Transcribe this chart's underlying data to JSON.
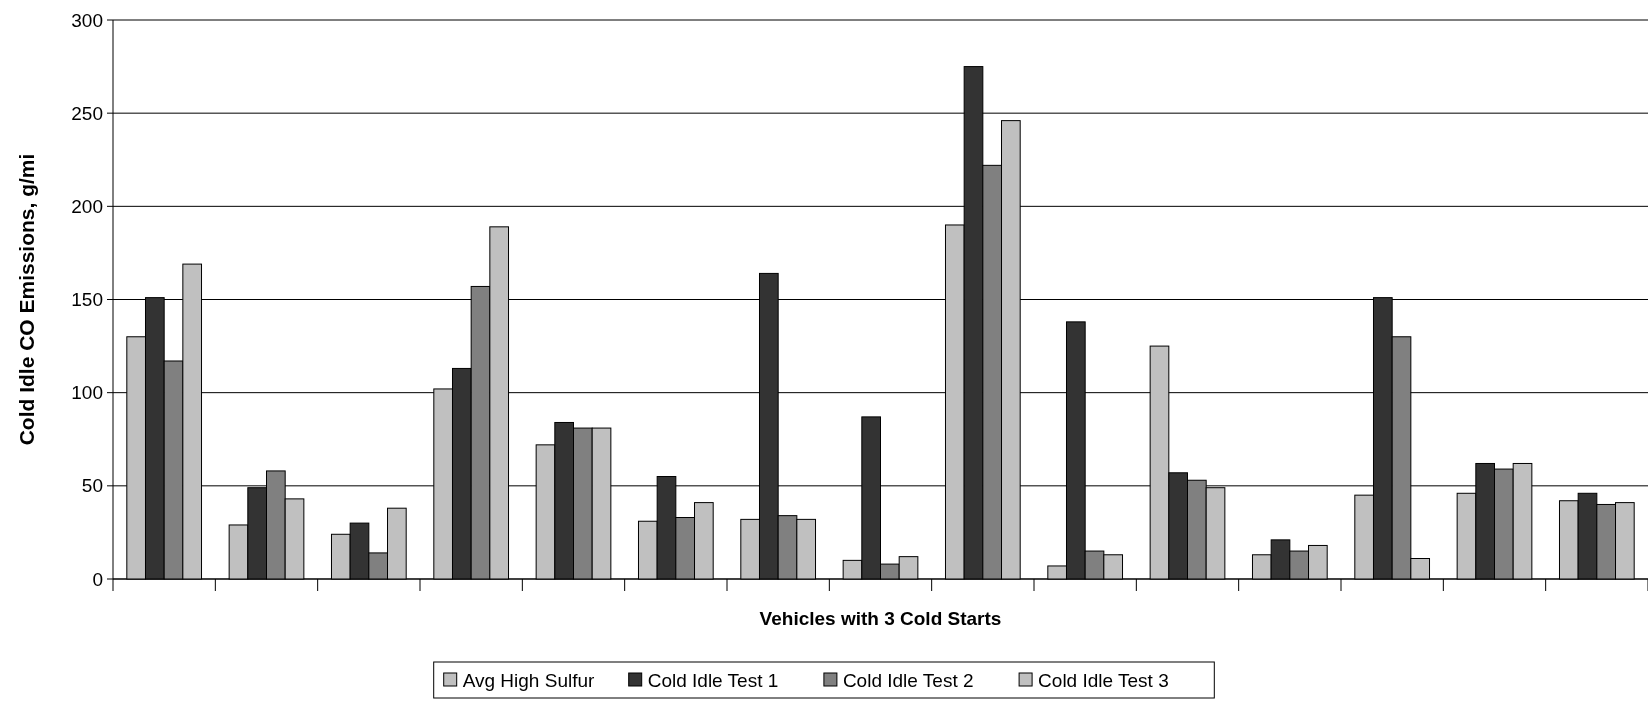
{
  "chart_data": {
    "type": "bar",
    "xlabel": "Vehicles with 3 Cold Starts",
    "ylabel": "Cold Idle CO Emissions, g/mi",
    "categories": [
      null,
      null,
      null,
      null,
      null,
      null,
      null,
      null,
      null,
      null,
      null,
      null,
      null,
      null,
      null
    ],
    "series": [
      {
        "name": "Avg High Sulfur",
        "color": "#c0c0c0",
        "values": [
          130,
          29,
          24,
          102,
          72,
          31,
          32,
          10,
          190,
          7,
          125,
          13,
          45,
          46,
          42
        ]
      },
      {
        "name": "Cold Idle Test 1",
        "color": "#333333",
        "values": [
          151,
          49,
          30,
          113,
          84,
          55,
          164,
          87,
          275,
          138,
          57,
          21,
          151,
          62,
          46
        ]
      },
      {
        "name": "Cold Idle Test 2",
        "color": "#808080",
        "values": [
          117,
          58,
          14,
          157,
          81,
          33,
          34,
          8,
          222,
          15,
          53,
          15,
          130,
          59,
          40
        ]
      },
      {
        "name": "Cold Idle Test 3",
        "color": "#c0c0c0",
        "values": [
          169,
          43,
          38,
          189,
          81,
          41,
          32,
          12,
          246,
          13,
          49,
          18,
          11,
          62,
          41
        ]
      }
    ],
    "ylim": [
      0,
      300
    ],
    "yticks": [
      0,
      50,
      100,
      150,
      200,
      250,
      300
    ],
    "grid": "y",
    "legend": "bottom"
  }
}
